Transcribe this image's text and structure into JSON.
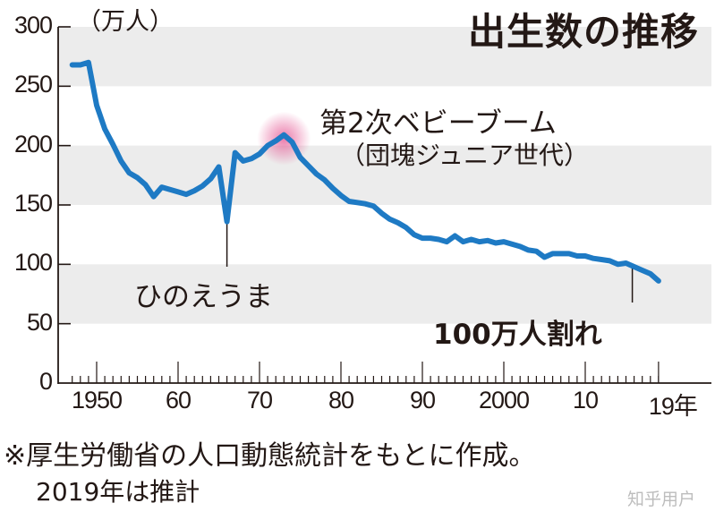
{
  "title": "出生数の推移",
  "unit_label": "（万人）",
  "annotations": {
    "baby_boom_line1": "第2次ベビーブーム",
    "baby_boom_line2": "（団塊ジュニア世代）",
    "hinoeuma": "ひのえうま",
    "below_million": "100万人割れ"
  },
  "footnote": {
    "line1": "※厚生労働省の人口動態統計をもとに作成。",
    "line2": "2019年は推計"
  },
  "watermark": "知乎用户",
  "colors": {
    "line": "#1e7ac4",
    "band": "#ececec",
    "highlight": "#e4508f",
    "text": "#231815"
  },
  "chart_data": {
    "type": "line",
    "title": "出生数の推移",
    "xlabel": "年",
    "ylabel": "（万人）",
    "ylim": [
      0,
      300
    ],
    "xlim": [
      1946,
      2020
    ],
    "y_ticks": [
      0,
      50,
      100,
      150,
      200,
      250,
      300
    ],
    "y_tick_labels": [
      "0",
      "50",
      "100",
      "150",
      "200",
      "250",
      "300"
    ],
    "x_ticks": [
      1950,
      1960,
      1970,
      1980,
      1990,
      2000,
      2010,
      2019
    ],
    "x_tick_labels": [
      "1950",
      "60",
      "70",
      "80",
      "90",
      "2000",
      "10",
      "19年"
    ],
    "grid": "alternating horizontal bands (250-300, 150-200, 50-100 shaded)",
    "legend": "none",
    "series": [
      {
        "name": "出生数",
        "x": [
          1947,
          1948,
          1949,
          1950,
          1951,
          1952,
          1953,
          1954,
          1955,
          1956,
          1957,
          1958,
          1959,
          1960,
          1961,
          1962,
          1963,
          1964,
          1965,
          1966,
          1967,
          1968,
          1969,
          1970,
          1971,
          1972,
          1973,
          1974,
          1975,
          1976,
          1977,
          1978,
          1979,
          1980,
          1981,
          1982,
          1983,
          1984,
          1985,
          1986,
          1987,
          1988,
          1989,
          1990,
          1991,
          1992,
          1993,
          1994,
          1995,
          1996,
          1997,
          1998,
          1999,
          2000,
          2001,
          2002,
          2003,
          2004,
          2005,
          2006,
          2007,
          2008,
          2009,
          2010,
          2011,
          2012,
          2013,
          2014,
          2015,
          2016,
          2017,
          2018,
          2019
        ],
        "values": [
          268,
          268,
          270,
          234,
          214,
          201,
          187,
          177,
          173,
          167,
          157,
          165,
          163,
          161,
          159,
          162,
          166,
          172,
          182,
          136,
          194,
          187,
          189,
          193,
          200,
          204,
          209,
          203,
          190,
          183,
          176,
          171,
          164,
          158,
          153,
          152,
          151,
          149,
          143,
          138,
          135,
          131,
          125,
          122,
          122,
          121,
          119,
          124,
          119,
          121,
          119,
          120,
          118,
          119,
          117,
          115,
          112,
          111,
          106,
          109,
          109,
          109,
          107,
          107,
          105,
          104,
          103,
          100,
          101,
          98,
          95,
          92,
          86
        ]
      }
    ],
    "annotations": [
      {
        "text": "第2次ベビーブーム（団塊ジュニア世代）",
        "x": 1973,
        "y": 209
      },
      {
        "text": "ひのえうま",
        "x": 1966,
        "y": 136
      },
      {
        "text": "100万人割れ",
        "x": 2016,
        "y": 98
      }
    ]
  }
}
